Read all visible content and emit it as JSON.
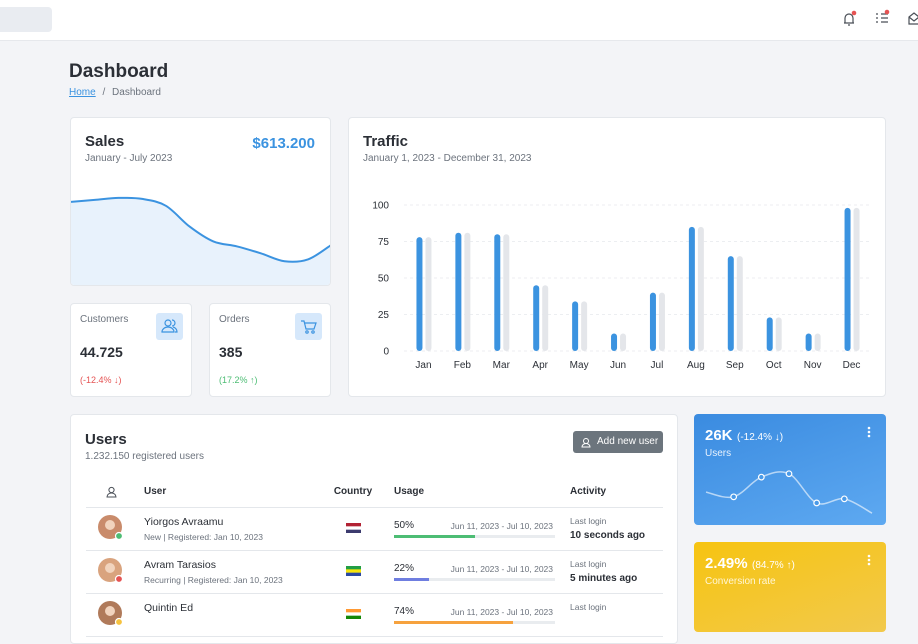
{
  "header": {
    "page_title": "Dashboard",
    "breadcrumb": [
      "Home",
      "Dashboard"
    ],
    "breadcrumb_separator": "/"
  },
  "sales": {
    "title": "Sales",
    "subtitle": "January - July 2023",
    "amount": "$613.200",
    "chart": {
      "type": "area",
      "values": [
        86,
        88,
        90,
        89,
        82,
        61,
        46,
        41,
        34,
        26,
        28,
        43
      ],
      "ylim": [
        0,
        100
      ],
      "color": "#3b93e0"
    }
  },
  "customers": {
    "label": "Customers",
    "value": "44.725",
    "change": "(-12.4% ↓)"
  },
  "orders": {
    "label": "Orders",
    "value": "385",
    "change": "(17.2% ↑)"
  },
  "chart_data": {
    "type": "bar",
    "title": "Traffic",
    "subtitle": "January 1, 2023 - December 31, 2023",
    "categories": [
      "Jan",
      "Feb",
      "Mar",
      "Apr",
      "May",
      "Jun",
      "Jul",
      "Aug",
      "Sep",
      "Oct",
      "Nov",
      "Dec"
    ],
    "series": [
      {
        "color": "#3b93e0",
        "values": [
          78,
          81,
          80,
          45,
          34,
          12,
          40,
          85,
          65,
          23,
          12,
          98
        ]
      },
      {
        "color": "#e4e6ea",
        "values": [
          78,
          81,
          80,
          45,
          34,
          12,
          40,
          85,
          65,
          23,
          12,
          98
        ]
      }
    ],
    "ylim": [
      0,
      100
    ],
    "yticks": [
      0,
      25,
      50,
      75,
      100
    ],
    "grid": true
  },
  "users": {
    "title": "Users",
    "subtitle": "1.232.150 registered users",
    "button": "Add new user",
    "columns": [
      "User",
      "Country",
      "Usage",
      "Activity"
    ],
    "rows": [
      {
        "name": "Yiorgos Avraamu",
        "detail": "New | Registered: Jan 10, 2023",
        "usage": 50,
        "usage_label": "50%",
        "usage_color": "#4dbd74",
        "period": "Jun 11, 2023 - Jul 10, 2023",
        "activity_label": "Last login",
        "activity": "10 seconds ago"
      },
      {
        "name": "Avram Tarasios",
        "detail": "Recurring | Registered: Jan 10, 2023",
        "usage": 22,
        "usage_label": "22%",
        "usage_color": "#6f7ee0",
        "period": "Jun 11, 2023 - Jul 10, 2023",
        "activity_label": "Last login",
        "activity": "5 minutes ago"
      },
      {
        "name": "Quintin Ed",
        "usage": 74,
        "usage_label": "74%",
        "usage_color": "#f6a23e",
        "period": "Jun 11, 2023 - Jul 10, 2023",
        "activity_label": "Last login"
      }
    ]
  },
  "stats": [
    {
      "value": "26K",
      "change": "(-12.4% ↓)",
      "label": "Users",
      "chart": {
        "type": "line",
        "values": [
          44,
          37,
          66,
          71,
          28,
          34,
          13
        ],
        "ylim": [
          0,
          100
        ]
      }
    },
    {
      "value": "2.49%",
      "change": "(84.7% ↑)",
      "label": "Conversion rate"
    }
  ]
}
